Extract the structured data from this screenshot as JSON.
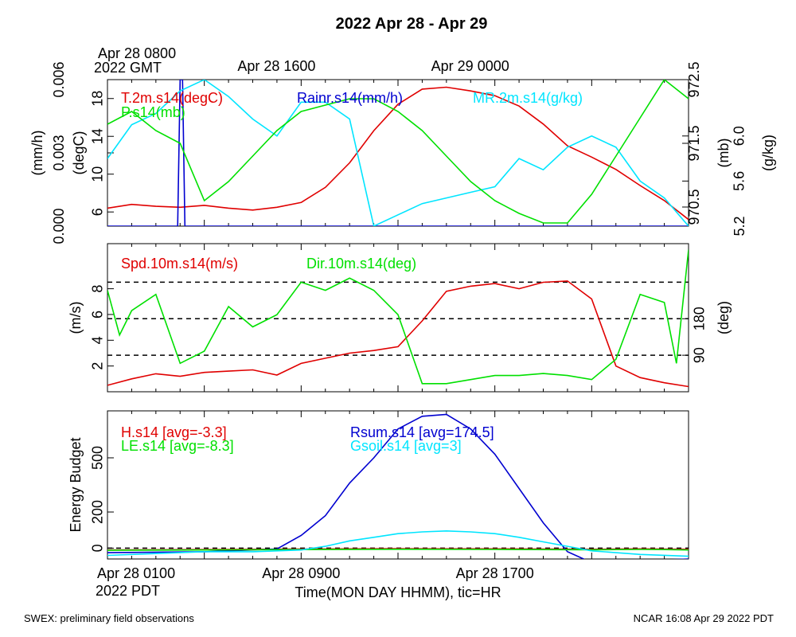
{
  "title": "2022 Apr 28 - Apr 29",
  "top_axis": {
    "ticks": [
      {
        "hour": 0,
        "lines": [
          "Apr 28 0800",
          "2022 GMT"
        ]
      },
      {
        "hour": 8,
        "lines": [
          "Apr 28 1600"
        ]
      },
      {
        "hour": 16,
        "lines": [
          "Apr 29 0000"
        ]
      }
    ]
  },
  "bottom_axis": {
    "ticks": [
      {
        "hour": 0,
        "lines": [
          "Apr 28 0100",
          "2022 PDT"
        ]
      },
      {
        "hour": 8,
        "lines": [
          "Apr 28 0900"
        ]
      },
      {
        "hour": 16,
        "lines": [
          "Apr 28 1700"
        ]
      }
    ],
    "label": "Time(MON DAY HHMM), tic=HR"
  },
  "footer": {
    "left": "SWEX: preliminary field observations",
    "right": "NCAR 16:08 Apr 29 2022 PDT"
  },
  "colors": {
    "red": "#e00000",
    "green": "#00e000",
    "blue": "#0000d0",
    "cyan": "#00e5ff",
    "black": "#000000"
  },
  "chart_data": [
    {
      "type": "line",
      "panel": "top",
      "x_unit": "hours",
      "xlim": [
        0,
        24
      ],
      "axes": {
        "left_outer": {
          "label": "(mm/h)",
          "ylim": [
            0,
            0.006
          ],
          "ticks": [
            "0.000",
            "0.003",
            "0.006"
          ],
          "tick_values": [
            0,
            0.003,
            0.006
          ]
        },
        "left_inner": {
          "label": "(degC)",
          "ylim": [
            4.5,
            20
          ],
          "ticks": [
            "6",
            "10",
            "14",
            "18"
          ],
          "tick_values": [
            6,
            10,
            14,
            18
          ]
        },
        "right_inner": {
          "label": "(mb)",
          "ylim": [
            970.2,
            972.5
          ],
          "ticks": [
            "970.5",
            "971.5",
            "972.5"
          ],
          "tick_values": [
            970.5,
            971.5,
            972.5
          ]
        },
        "right_outer": {
          "label": "(g/kg)",
          "ylim": [
            5.2,
            6.5
          ],
          "ticks": [
            "5.2",
            "5.6",
            "6.0"
          ],
          "tick_values": [
            5.2,
            5.6,
            6.0
          ]
        }
      },
      "series": [
        {
          "name": "T.2m.s14(degC)",
          "color": "red",
          "axis": "left_inner",
          "x": [
            0,
            1,
            2,
            3,
            4,
            5,
            6,
            7,
            8,
            9,
            10,
            11,
            12,
            13,
            14,
            15,
            16,
            17,
            18,
            19,
            20,
            21,
            22,
            23,
            24
          ],
          "y": [
            6.4,
            6.8,
            6.6,
            6.5,
            6.7,
            6.4,
            6.2,
            6.5,
            7.0,
            8.6,
            11.2,
            14.6,
            17.4,
            19.0,
            19.2,
            18.8,
            18.3,
            17.2,
            15.3,
            13.0,
            11.8,
            10.5,
            8.8,
            7.2,
            5.2
          ]
        },
        {
          "name": "Rainr.s14(mm/h)",
          "color": "blue",
          "axis": "left_outer",
          "x": [
            0,
            2.9,
            3.0,
            3.1,
            3.2,
            24
          ],
          "y": [
            0,
            0,
            0.006,
            0.006,
            0,
            0
          ]
        },
        {
          "name": "MR.2m.s14(g/kg)",
          "color": "cyan",
          "axis": "right_outer",
          "x": [
            0,
            1,
            2,
            3,
            4,
            5,
            6,
            7,
            8,
            9,
            10,
            11,
            12,
            13,
            14,
            15,
            16,
            17,
            18,
            19,
            20,
            21,
            22,
            23,
            24
          ],
          "y": [
            5.8,
            6.1,
            6.2,
            6.4,
            6.5,
            6.35,
            6.15,
            6.0,
            6.3,
            6.3,
            6.15,
            5.2,
            5.3,
            5.4,
            5.45,
            5.5,
            5.55,
            5.8,
            5.7,
            5.9,
            6.0,
            5.9,
            5.6,
            5.45,
            5.2
          ]
        },
        {
          "name": "P.s14(mb)",
          "color": "green",
          "axis": "right_inner",
          "x": [
            0,
            1,
            2,
            3,
            4,
            5,
            6,
            7,
            8,
            9,
            10,
            11,
            12,
            13,
            14,
            15,
            16,
            17,
            18,
            19,
            20,
            21,
            22,
            23,
            24
          ],
          "y": [
            971.8,
            972.0,
            971.7,
            971.5,
            970.6,
            970.9,
            971.3,
            971.7,
            972.0,
            972.1,
            972.2,
            972.2,
            972.0,
            971.7,
            971.3,
            970.9,
            970.6,
            970.4,
            970.25,
            970.25,
            970.7,
            971.3,
            971.9,
            972.5,
            972.2
          ]
        }
      ]
    },
    {
      "type": "line",
      "panel": "middle",
      "x_unit": "hours",
      "xlim": [
        0,
        24
      ],
      "axes": {
        "left": {
          "label": "(m/s)",
          "ylim": [
            0,
            11.5
          ],
          "ticks": [
            "2",
            "4",
            "6",
            "8"
          ],
          "tick_values": [
            2,
            4,
            6,
            8
          ]
        },
        "right": {
          "label": "(deg)",
          "ylim": [
            0,
            365
          ],
          "ticks": [
            "90",
            "180"
          ],
          "tick_values": [
            90,
            180
          ]
        }
      },
      "reference_lines": {
        "axis": "right",
        "values": [
          90,
          180,
          270
        ],
        "color": "black",
        "style": "dashed"
      },
      "series": [
        {
          "name": "Spd.10m.s14(m/s)",
          "color": "red",
          "axis": "left",
          "x": [
            0,
            1,
            2,
            3,
            4,
            5,
            6,
            7,
            8,
            9,
            10,
            11,
            12,
            13,
            14,
            15,
            16,
            17,
            18,
            19,
            20,
            21,
            22,
            23,
            24
          ],
          "y": [
            0.5,
            1.0,
            1.4,
            1.2,
            1.5,
            1.6,
            1.7,
            1.3,
            2.2,
            2.6,
            3.0,
            3.2,
            3.5,
            5.5,
            7.8,
            8.2,
            8.4,
            8.0,
            8.5,
            8.6,
            7.2,
            2.0,
            1.1,
            0.7,
            0.4
          ]
        },
        {
          "name": "Dir.10m.s14(deg)",
          "color": "green",
          "axis": "right",
          "x": [
            0,
            0.5,
            1,
            2,
            3,
            4,
            5,
            6,
            7,
            8,
            9,
            10,
            11,
            12,
            13,
            14,
            15,
            16,
            17,
            18,
            19,
            20,
            21,
            22,
            23,
            23.5,
            24
          ],
          "y": [
            250,
            140,
            200,
            240,
            70,
            100,
            210,
            160,
            190,
            270,
            250,
            280,
            250,
            190,
            20,
            20,
            30,
            40,
            40,
            45,
            40,
            30,
            80,
            240,
            220,
            70,
            350
          ]
        }
      ]
    },
    {
      "type": "line",
      "panel": "bottom",
      "x_unit": "hours",
      "xlim": [
        0,
        24
      ],
      "axes": {
        "left": {
          "label": "Energy Budget",
          "ylim": [
            -60,
            760
          ],
          "ticks": [
            "0",
            "200",
            "500"
          ],
          "tick_values": [
            0,
            200,
            500
          ]
        }
      },
      "reference_lines": {
        "axis": "left",
        "values": [
          0
        ],
        "color": "black",
        "style": "dashed"
      },
      "series": [
        {
          "name": "H.s14 [avg=-3.3]",
          "color": "red",
          "axis": "left",
          "x": [
            0,
            4,
            8,
            12,
            16,
            20,
            22,
            23,
            24
          ],
          "y": [
            -10,
            -8,
            -5,
            -3,
            -4,
            -6,
            -4,
            -5,
            -6
          ]
        },
        {
          "name": "Rsum.s14 [avg=174.5]",
          "color": "blue",
          "axis": "left",
          "x": [
            0,
            4,
            7,
            8,
            9,
            10,
            11,
            12,
            13,
            14,
            15,
            16,
            17,
            18,
            19,
            20,
            22,
            24
          ],
          "y": [
            -25,
            -20,
            -5,
            70,
            180,
            360,
            500,
            660,
            730,
            740,
            660,
            520,
            330,
            140,
            -20,
            -80,
            -70,
            -60
          ]
        },
        {
          "name": "LE.s14 [avg=-8.3]",
          "color": "green",
          "axis": "left",
          "x": [
            0,
            4,
            8,
            12,
            16,
            20,
            22,
            23,
            24
          ],
          "y": [
            -12,
            -10,
            -8,
            -6,
            -7,
            -9,
            -7,
            -8,
            -10
          ]
        },
        {
          "name": "Gsoil.s14 [avg=3]",
          "color": "cyan",
          "axis": "left",
          "x": [
            0,
            2,
            4,
            6,
            8,
            9,
            10,
            11,
            12,
            13,
            14,
            15,
            16,
            17,
            18,
            19,
            20,
            22,
            24
          ],
          "y": [
            -40,
            -30,
            -20,
            -20,
            -10,
            10,
            40,
            60,
            80,
            90,
            95,
            90,
            80,
            60,
            35,
            10,
            -15,
            -35,
            -45
          ]
        }
      ]
    }
  ]
}
